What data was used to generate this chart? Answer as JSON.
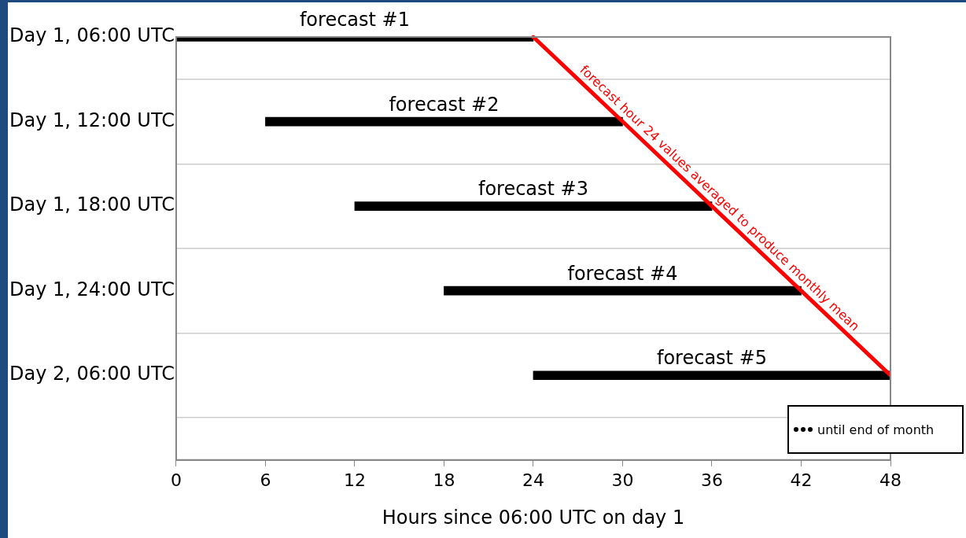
{
  "chart_data": {
    "type": "bar",
    "orientation": "horizontal",
    "categories": [
      "Day 1, 06:00 UTC",
      "Day 1, 12:00 UTC",
      "Day 1, 18:00 UTC",
      "Day 1, 24:00 UTC",
      "Day 2, 06:00 UTC",
      null
    ],
    "series": [
      {
        "name": "forecast #1",
        "color": "#000000",
        "base": [
          0,
          null,
          null,
          null,
          null,
          null
        ],
        "values": [
          24,
          null,
          null,
          null,
          null,
          null
        ]
      },
      {
        "name": "forecast #2",
        "color": "#000000",
        "base": [
          null,
          6,
          null,
          null,
          null,
          null
        ],
        "values": [
          null,
          24,
          null,
          null,
          null,
          null
        ]
      },
      {
        "name": "forecast #3",
        "color": "#000000",
        "base": [
          null,
          null,
          12,
          null,
          null,
          null
        ],
        "values": [
          null,
          null,
          24,
          null,
          null,
          null
        ]
      },
      {
        "name": "forecast #4",
        "color": "#000000",
        "base": [
          null,
          null,
          null,
          18,
          null,
          null
        ],
        "values": [
          null,
          null,
          null,
          24,
          null,
          null
        ]
      },
      {
        "name": "forecast #5",
        "color": "#000000",
        "base": [
          null,
          null,
          null,
          null,
          24,
          null
        ],
        "values": [
          null,
          null,
          null,
          null,
          24,
          null
        ]
      },
      {
        "type": "line",
        "name": "forecast hour 24 values averaged to produce monthly mean",
        "color": "#ff0000",
        "values": [
          24,
          30,
          36,
          42,
          48,
          null
        ]
      }
    ],
    "xlabel": "Hours since 06:00 UTC on day 1",
    "xlim": [
      0,
      48
    ],
    "xticks": [
      0,
      6,
      12,
      18,
      24,
      30,
      36,
      42,
      48
    ],
    "grid": "y",
    "legend": false,
    "marker": "none",
    "line_style": "solid",
    "annotations": [
      "until end of month"
    ]
  }
}
